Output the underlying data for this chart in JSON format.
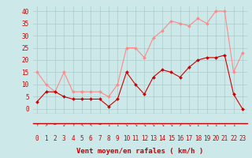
{
  "x": [
    0,
    1,
    2,
    3,
    4,
    5,
    6,
    7,
    8,
    9,
    10,
    11,
    12,
    13,
    14,
    15,
    16,
    17,
    18,
    19,
    20,
    21,
    22,
    23
  ],
  "wind_avg": [
    3,
    7,
    7,
    5,
    4,
    4,
    4,
    4,
    1,
    4,
    15,
    10,
    6,
    13,
    16,
    15,
    13,
    17,
    20,
    21,
    21,
    22,
    6,
    0
  ],
  "wind_gust": [
    15,
    10,
    7,
    15,
    7,
    7,
    7,
    7,
    5,
    10,
    25,
    25,
    21,
    29,
    32,
    36,
    35,
    34,
    37,
    35,
    40,
    40,
    15,
    23
  ],
  "bg_color": "#cce8e8",
  "grid_color": "#aacccc",
  "line_avg_color": "#cc0000",
  "line_gust_color": "#ff8888",
  "xlabel": "Vent moyen/en rafales ( km/h )",
  "ylabel_values": [
    0,
    5,
    10,
    15,
    20,
    25,
    30,
    35,
    40
  ],
  "ylim": [
    -2,
    42
  ],
  "xlim": [
    -0.5,
    23.5
  ],
  "arrow_row_labels": [
    "↑",
    "↗",
    "←",
    "↙",
    "↑",
    "↖",
    "↖",
    "→",
    "↓",
    "↓",
    "↘",
    "↘",
    "↘",
    "↘",
    "↘",
    "↘",
    "↗",
    "↘",
    "↓",
    "↓",
    "↓",
    "↓",
    "↓"
  ],
  "x_tick_labels": [
    "0",
    "1",
    "2",
    "3",
    "4",
    "5",
    "6",
    "7",
    "8",
    "9",
    "10",
    "11",
    "12",
    "13",
    "14",
    "15",
    "16",
    "17",
    "18",
    "19",
    "20",
    "21",
    "22",
    "23"
  ]
}
